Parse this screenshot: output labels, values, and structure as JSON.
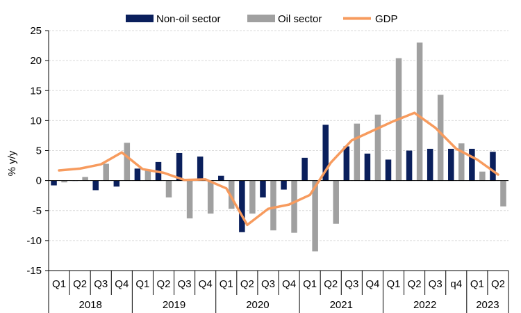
{
  "chart_data": {
    "type": "bar",
    "title": "",
    "xlabel": "",
    "ylabel": "% y/y",
    "ylim": [
      -15,
      25
    ],
    "yticks": [
      -15,
      -10,
      -5,
      0,
      5,
      10,
      15,
      20,
      25
    ],
    "grid": true,
    "legend_position": "top",
    "categories": [
      "Q1",
      "Q2",
      "Q3",
      "Q4",
      "Q1",
      "Q2",
      "Q3",
      "Q4",
      "Q1",
      "Q2",
      "Q3",
      "Q4",
      "Q1",
      "Q2",
      "Q3",
      "Q4",
      "Q1",
      "Q2",
      "Q3",
      "q4",
      "Q1",
      "Q2"
    ],
    "years": [
      {
        "label": "2018",
        "count": 4
      },
      {
        "label": "2019",
        "count": 4
      },
      {
        "label": "2020",
        "count": 4
      },
      {
        "label": "2021",
        "count": 4
      },
      {
        "label": "2022",
        "count": 4
      },
      {
        "label": "2023",
        "count": 2
      }
    ],
    "series": [
      {
        "name": "Non-oil sector",
        "kind": "bar",
        "color": "#0a1f5c",
        "values": [
          -0.8,
          0.0,
          -1.6,
          -1.0,
          2.0,
          3.1,
          4.6,
          4.0,
          0.8,
          -8.6,
          -2.8,
          -1.5,
          3.8,
          9.3,
          5.7,
          4.5,
          3.5,
          5.0,
          5.3,
          5.3,
          5.3,
          4.8
        ]
      },
      {
        "name": "Oil sector",
        "kind": "bar",
        "color": "#a0a0a0",
        "values": [
          -0.3,
          0.6,
          2.8,
          6.3,
          1.8,
          -2.8,
          -6.3,
          -5.5,
          -4.7,
          -5.5,
          -8.3,
          -8.7,
          -11.8,
          -7.2,
          9.5,
          11.0,
          20.4,
          23.0,
          14.3,
          6.2,
          1.5,
          -4.3
        ]
      },
      {
        "name": "GDP",
        "kind": "line",
        "color": "#f79b5e",
        "values": [
          1.7,
          2.0,
          2.7,
          4.7,
          1.9,
          1.3,
          0.1,
          0.2,
          -1.3,
          -7.4,
          -4.7,
          -4.0,
          -2.4,
          3.0,
          6.7,
          8.3,
          9.9,
          11.3,
          8.8,
          5.3,
          3.5,
          1.0
        ]
      }
    ]
  }
}
